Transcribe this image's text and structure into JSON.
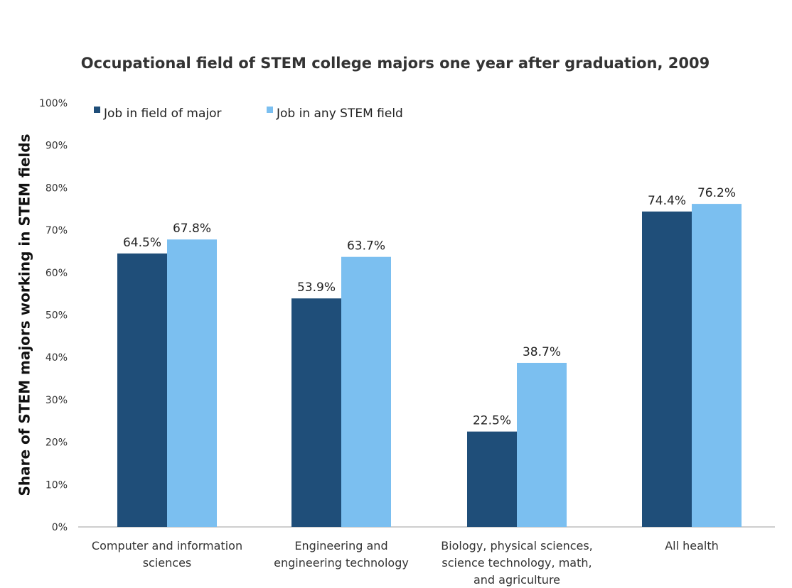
{
  "chart_data": {
    "type": "bar",
    "title": "Occupational field of STEM college majors one year after graduation, 2009",
    "xlabel": "",
    "ylabel": "Share of STEM majors working in STEM fields",
    "ylim": [
      0,
      100
    ],
    "yticks": [
      0,
      10,
      20,
      30,
      40,
      50,
      60,
      70,
      80,
      90,
      100
    ],
    "ytick_labels": [
      "0%",
      "10%",
      "20%",
      "30%",
      "40%",
      "50%",
      "60%",
      "70%",
      "80%",
      "90%",
      "100%"
    ],
    "grid": false,
    "legend_position": "top-left",
    "categories": [
      [
        "Computer and information",
        "sciences"
      ],
      [
        "Engineering and",
        "engineering technology"
      ],
      [
        "Biology, physical sciences,",
        "science technology, math,",
        "and agriculture"
      ],
      [
        "All health"
      ]
    ],
    "series": [
      {
        "name": "Job in field of major",
        "color": "#1f4e79",
        "values": [
          64.5,
          53.9,
          22.5,
          74.4
        ],
        "labels": [
          "64.5%",
          "53.9%",
          "22.5%",
          "74.4%"
        ]
      },
      {
        "name": "Job in any STEM field",
        "color": "#7bbff0",
        "values": [
          67.8,
          63.7,
          38.7,
          76.2
        ],
        "labels": [
          "67.8%",
          "63.7%",
          "38.7%",
          "76.2%"
        ]
      }
    ]
  }
}
